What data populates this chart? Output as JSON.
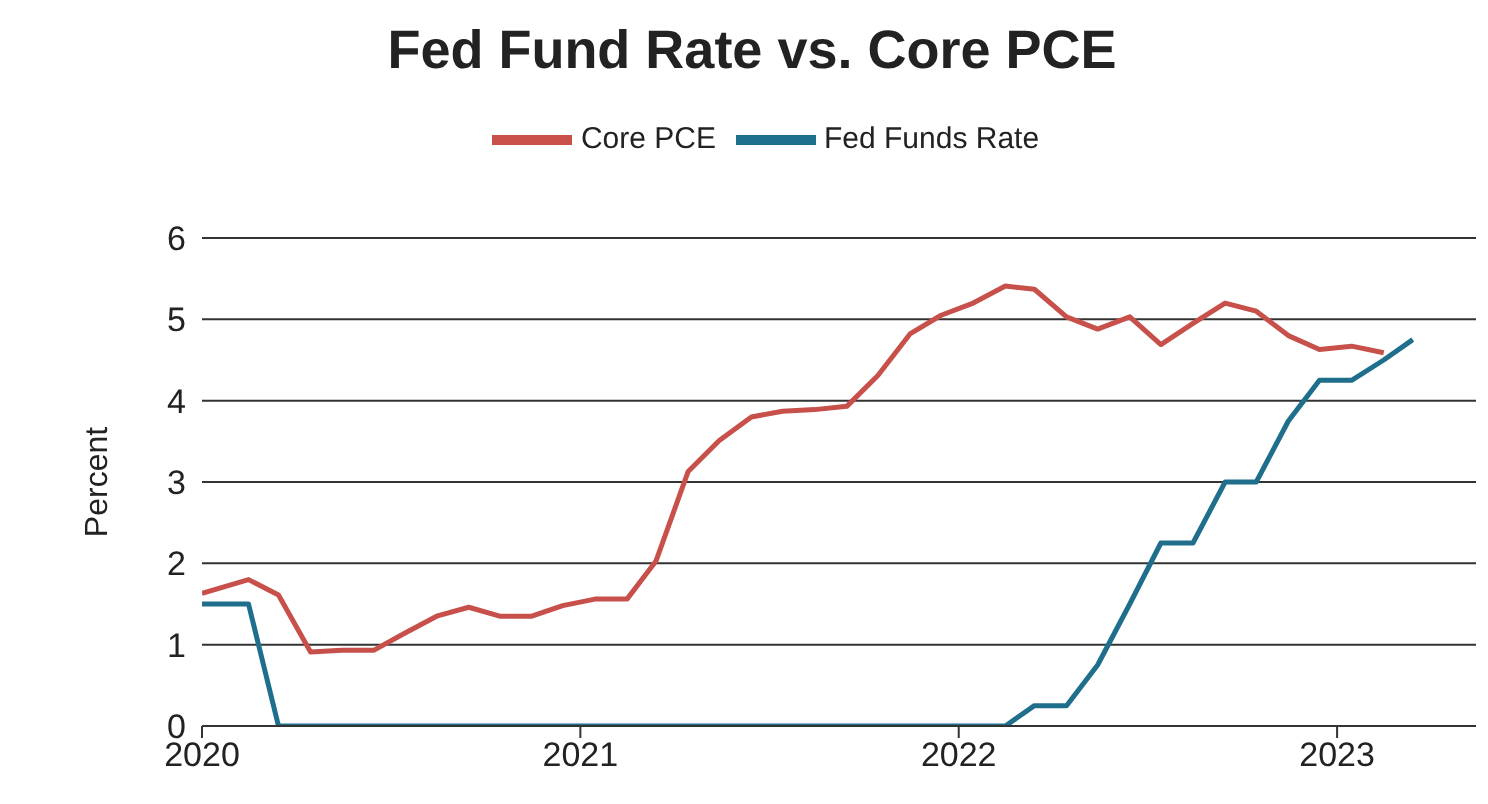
{
  "chart_data": {
    "type": "line",
    "title": "Fed Fund Rate vs. Core PCE",
    "ylabel": "Percent",
    "xlim": [
      "2020-01-01",
      "2023-05-15"
    ],
    "xticks": [
      {
        "value": "2020-01-01",
        "label": "2020"
      },
      {
        "value": "2021-01-01",
        "label": "2021"
      },
      {
        "value": "2022-01-01",
        "label": "2022"
      },
      {
        "value": "2023-01-01",
        "label": "2023"
      }
    ],
    "ylim": [
      0,
      6
    ],
    "yticks": [
      0,
      1,
      2,
      3,
      4,
      5,
      6
    ],
    "grid": "y",
    "legend": "top",
    "marker": "none",
    "line_style": "solid",
    "series": [
      {
        "name": "Fed Funds Rate",
        "color": "#1f6e8c",
        "x": [
          "2020-01-01",
          "2020-02-15",
          "2020-03-15",
          "2020-04-15",
          "2020-05-15",
          "2020-06-15",
          "2020-07-15",
          "2020-08-15",
          "2020-09-15",
          "2020-10-15",
          "2020-11-15",
          "2020-12-15",
          "2021-01-15",
          "2021-02-15",
          "2021-03-15",
          "2021-04-15",
          "2021-05-15",
          "2021-06-15",
          "2021-07-15",
          "2021-08-15",
          "2021-09-15",
          "2021-10-15",
          "2021-11-15",
          "2021-12-15",
          "2022-01-15",
          "2022-02-15",
          "2022-03-15",
          "2022-04-15",
          "2022-05-15",
          "2022-06-15",
          "2022-07-15",
          "2022-08-15",
          "2022-09-15",
          "2022-10-15",
          "2022-11-15",
          "2022-12-15",
          "2023-01-15",
          "2023-02-15",
          "2023-03-15"
        ],
        "values": [
          1.5,
          1.5,
          0,
          0,
          0,
          0,
          0,
          0,
          0,
          0,
          0,
          0,
          0,
          0,
          0,
          0,
          0,
          0,
          0,
          0,
          0,
          0,
          0,
          0,
          0,
          0,
          0.25,
          0.25,
          0.75,
          1.5,
          2.25,
          2.25,
          3,
          3,
          3.75,
          4.25,
          4.25,
          4.5,
          4.75
        ]
      },
      {
        "name": "Core PCE",
        "color": "#c8504b",
        "x": [
          "2020-01-01",
          "2020-02-15",
          "2020-03-15",
          "2020-04-15",
          "2020-05-15",
          "2020-06-15",
          "2020-07-15",
          "2020-08-15",
          "2020-09-15",
          "2020-10-15",
          "2020-11-15",
          "2020-12-15",
          "2021-01-15",
          "2021-02-15",
          "2021-03-15",
          "2021-04-15",
          "2021-05-15",
          "2021-06-15",
          "2021-07-15",
          "2021-08-15",
          "2021-09-15",
          "2021-10-15",
          "2021-11-15",
          "2021-12-15",
          "2022-01-15",
          "2022-02-15",
          "2022-03-15",
          "2022-04-15",
          "2022-05-15",
          "2022-06-15",
          "2022-07-15",
          "2022-08-15",
          "2022-09-15",
          "2022-10-15",
          "2022-11-15",
          "2022-12-15",
          "2023-01-15",
          "2023-02-15"
        ],
        "values": [
          1.63,
          1.8,
          1.61,
          0.91,
          0.93,
          0.93,
          1.14,
          1.35,
          1.46,
          1.35,
          1.35,
          1.48,
          1.56,
          1.56,
          2.03,
          3.13,
          3.51,
          3.8,
          3.87,
          3.89,
          3.93,
          4.31,
          4.82,
          5.05,
          5.2,
          5.41,
          5.37,
          5.03,
          4.88,
          5.03,
          4.69,
          4.95,
          5.2,
          5.1,
          4.8,
          4.63,
          4.67,
          4.59
        ]
      }
    ]
  }
}
